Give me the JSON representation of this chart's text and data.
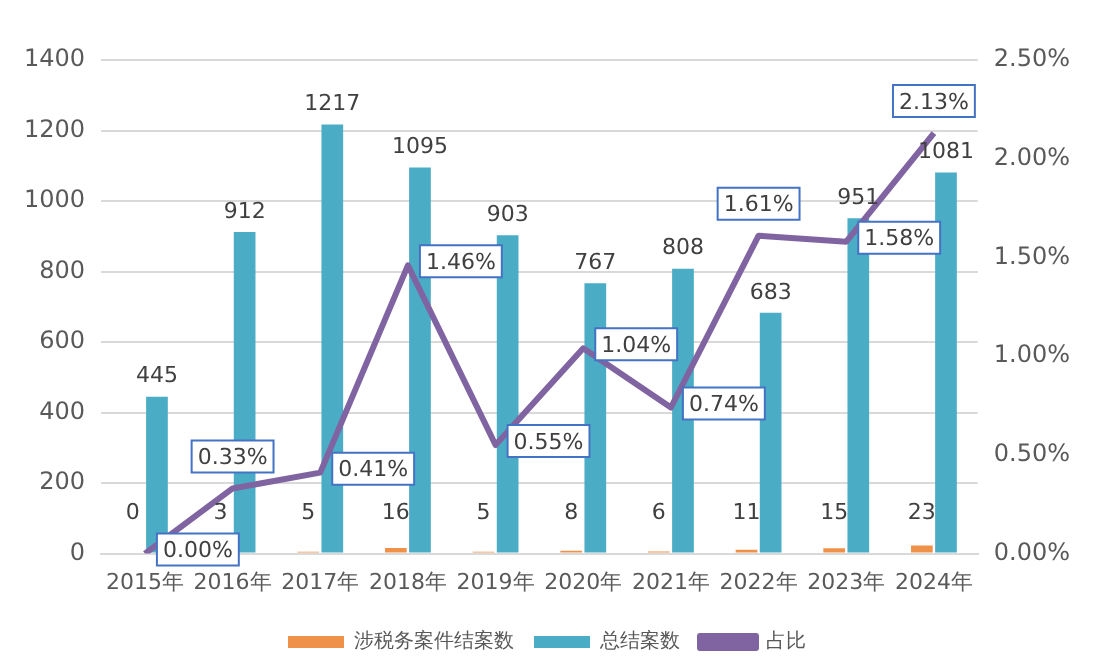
{
  "chart_data": {
    "type": "bar",
    "categories": [
      "2015年",
      "2016年",
      "2017年",
      "2018年",
      "2019年",
      "2020年",
      "2021年",
      "2022年",
      "2023年",
      "2024年"
    ],
    "series": [
      {
        "name": "涉税务案件结案数",
        "color": "#f0914a",
        "values": [
          0,
          3,
          5,
          16,
          5,
          8,
          6,
          11,
          15,
          23
        ],
        "value_labels": [
          "0",
          "3",
          "5",
          "16",
          "5",
          "8",
          "6",
          "11",
          "15",
          "23"
        ]
      },
      {
        "name": "总结案数",
        "color": "#4bacc6",
        "values": [
          445,
          912,
          1217,
          1095,
          903,
          767,
          808,
          683,
          951,
          1081
        ],
        "value_labels": [
          "445",
          "912",
          "1217",
          "1095",
          "903",
          "767",
          "808",
          "683",
          "951",
          "1081"
        ]
      },
      {
        "name": "占比",
        "type": "line",
        "axis": "y2",
        "color": "#8064a2",
        "values": [
          0.0,
          0.33,
          0.41,
          1.46,
          0.55,
          1.04,
          0.74,
          1.61,
          1.58,
          2.13
        ],
        "value_labels": [
          "0.00%",
          "0.33%",
          "0.41%",
          "1.46%",
          "0.55%",
          "1.04%",
          "0.74%",
          "1.61%",
          "1.58%",
          "2.13%"
        ]
      }
    ],
    "ylim": [
      0,
      1400
    ],
    "yticks": [
      0,
      200,
      400,
      600,
      800,
      1000,
      1200,
      1400
    ],
    "y2lim": [
      0,
      2.5
    ],
    "y2ticks": [
      {
        "value": 0,
        "label": "0.00%"
      },
      {
        "value": 0.5,
        "label": "0.50%"
      },
      {
        "value": 1,
        "label": "1.00%"
      },
      {
        "value": 1.5,
        "label": "1.50%"
      },
      {
        "value": 2,
        "label": "2.00%"
      },
      {
        "value": 2.5,
        "label": "2.50%"
      }
    ],
    "grid": "y",
    "legend": "bottom",
    "marker": "none",
    "line_style": "solid"
  }
}
